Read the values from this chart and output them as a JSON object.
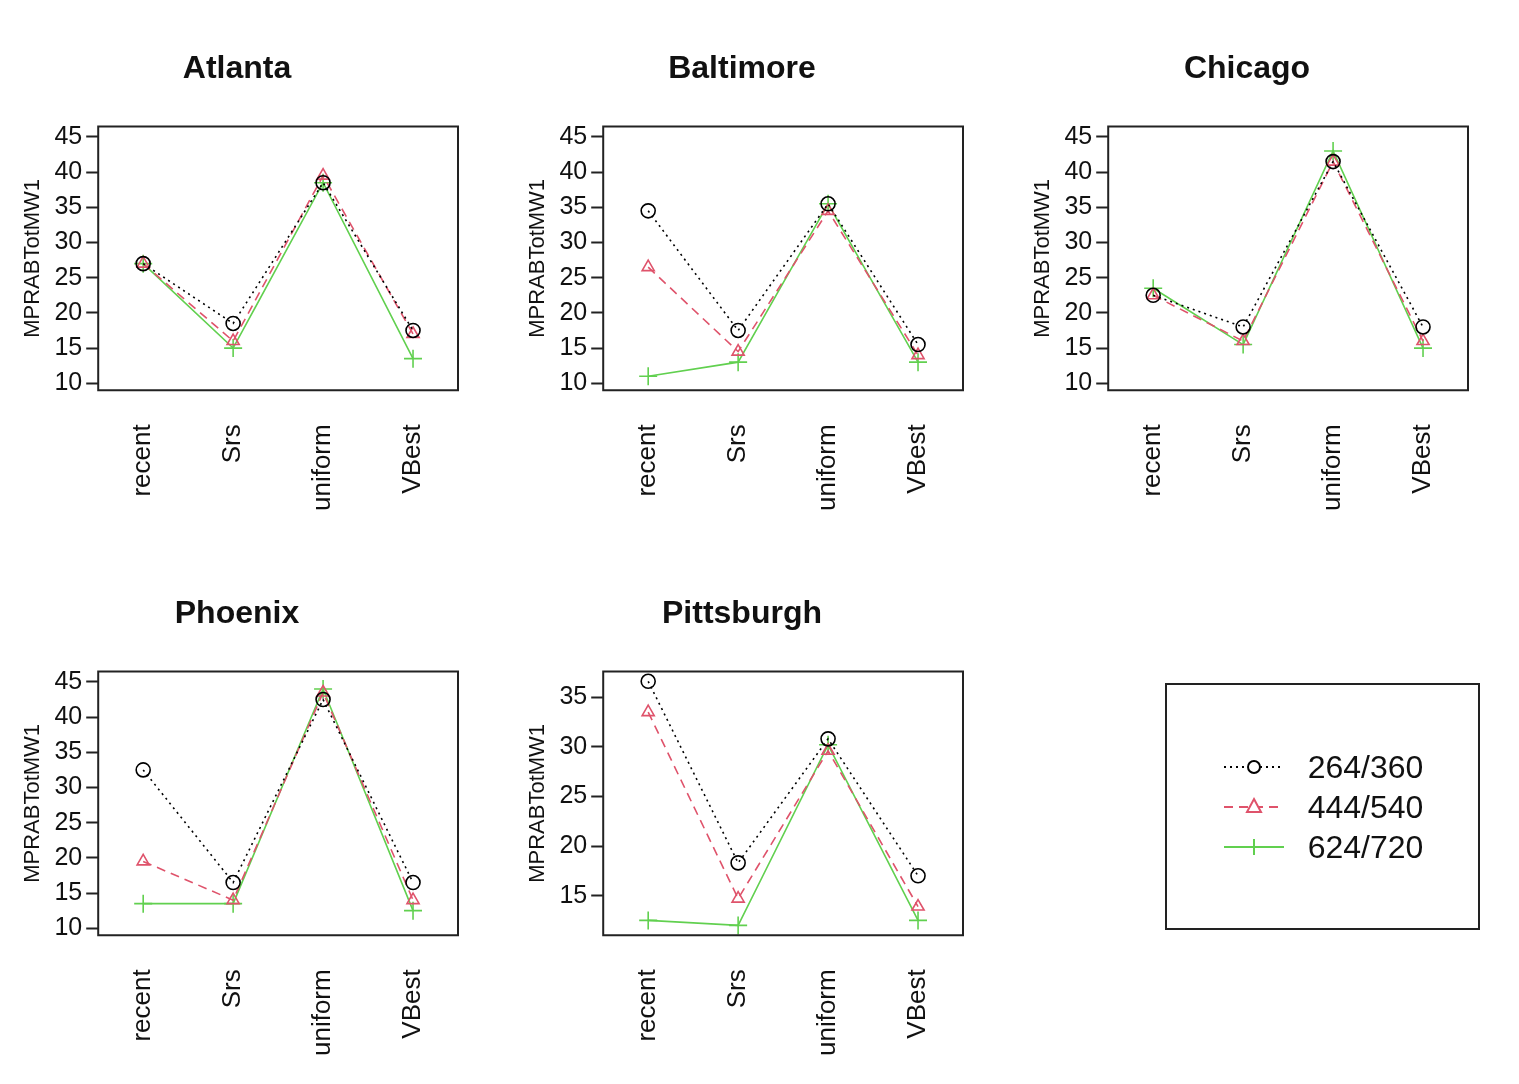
{
  "chart_data": [
    {
      "type": "line",
      "title": "Atlanta",
      "ylabel": "MPRABTotMW1",
      "categories": [
        "recent",
        "Srs",
        "uniform",
        "VBest"
      ],
      "ylim": [
        9,
        46.5
      ],
      "yticks": [
        10,
        15,
        20,
        25,
        30,
        35,
        40,
        45
      ],
      "grid": false,
      "series": [
        {
          "color": "#000000",
          "marker": "circle",
          "line_style": "dotted",
          "values": [
            27,
            18.5,
            38.5,
            17.5
          ]
        },
        {
          "color": "#df536b",
          "marker": "triangle",
          "line_style": "dashed",
          "values": [
            27,
            16,
            39.5,
            17
          ]
        },
        {
          "color": "#61d04f",
          "marker": "cross",
          "line_style": "solid",
          "values": [
            27,
            15,
            38.5,
            13.5
          ]
        }
      ]
    },
    {
      "type": "line",
      "title": "Baltimore",
      "ylabel": "MPRABTotMW1",
      "categories": [
        "recent",
        "Srs",
        "uniform",
        "VBest"
      ],
      "ylim": [
        9,
        46.5
      ],
      "yticks": [
        10,
        15,
        20,
        25,
        30,
        35,
        40,
        45
      ],
      "grid": false,
      "series": [
        {
          "color": "#000000",
          "marker": "circle",
          "line_style": "dotted",
          "values": [
            34.5,
            17.5,
            35.5,
            15.5
          ]
        },
        {
          "color": "#df536b",
          "marker": "triangle",
          "line_style": "dashed",
          "values": [
            26.5,
            14.5,
            34.5,
            14
          ]
        },
        {
          "color": "#61d04f",
          "marker": "cross",
          "line_style": "solid",
          "values": [
            11,
            13,
            35.5,
            13
          ]
        }
      ]
    },
    {
      "type": "line",
      "title": "Chicago",
      "ylabel": "MPRABTotMW1",
      "categories": [
        "recent",
        "Srs",
        "uniform",
        "VBest"
      ],
      "ylim": [
        9,
        46.5
      ],
      "yticks": [
        10,
        15,
        20,
        25,
        30,
        35,
        40,
        45
      ],
      "grid": false,
      "series": [
        {
          "color": "#000000",
          "marker": "circle",
          "line_style": "dotted",
          "values": [
            22.5,
            18,
            41.5,
            18
          ]
        },
        {
          "color": "#df536b",
          "marker": "triangle",
          "line_style": "dashed",
          "values": [
            22.5,
            16,
            41.5,
            16
          ]
        },
        {
          "color": "#61d04f",
          "marker": "cross",
          "line_style": "solid",
          "values": [
            23.5,
            15.5,
            43,
            15
          ]
        }
      ]
    },
    {
      "type": "line",
      "title": "Phoenix",
      "ylabel": "MPRABTotMW1",
      "categories": [
        "recent",
        "Srs",
        "uniform",
        "VBest"
      ],
      "ylim": [
        9,
        46.5
      ],
      "yticks": [
        10,
        15,
        20,
        25,
        30,
        35,
        40,
        45
      ],
      "grid": false,
      "series": [
        {
          "color": "#000000",
          "marker": "circle",
          "line_style": "dotted",
          "values": [
            32.5,
            16.5,
            42.5,
            16.5
          ]
        },
        {
          "color": "#df536b",
          "marker": "triangle",
          "line_style": "dashed",
          "values": [
            19.5,
            14,
            43.5,
            14
          ]
        },
        {
          "color": "#61d04f",
          "marker": "cross",
          "line_style": "solid",
          "values": [
            13.5,
            13.5,
            44,
            12.5
          ]
        }
      ]
    },
    {
      "type": "line",
      "title": "Pittsburgh",
      "ylabel": "MPRABTotMW1",
      "categories": [
        "recent",
        "Srs",
        "uniform",
        "VBest"
      ],
      "ylim": [
        11,
        37.6
      ],
      "yticks": [
        15,
        20,
        25,
        30,
        35
      ],
      "grid": false,
      "legend": "right",
      "series": [
        {
          "name": "264/360",
          "color": "#000000",
          "marker": "circle",
          "line_style": "dotted",
          "values": [
            36.6,
            18.3,
            30.8,
            17
          ]
        },
        {
          "name": "444/540",
          "color": "#df536b",
          "marker": "triangle",
          "line_style": "dashed",
          "values": [
            33.5,
            14.7,
            29.6,
            13.9
          ]
        },
        {
          "name": "624/720",
          "color": "#61d04f",
          "marker": "cross",
          "line_style": "solid",
          "values": [
            12.5,
            12,
            30.2,
            12.5
          ]
        }
      ]
    }
  ]
}
